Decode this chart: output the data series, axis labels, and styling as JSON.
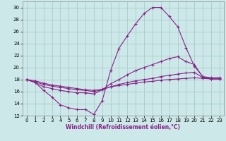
{
  "xlabel": "Windchill (Refroidissement éolien,°C)",
  "bg_color": "#cce8e8",
  "grid_color": "#aacccc",
  "line_color": "#882288",
  "xlim": [
    -0.5,
    23.5
  ],
  "ylim": [
    12,
    31
  ],
  "xticks": [
    0,
    1,
    2,
    3,
    4,
    5,
    6,
    7,
    8,
    9,
    10,
    11,
    12,
    13,
    14,
    15,
    16,
    17,
    18,
    19,
    20,
    21,
    22,
    23
  ],
  "yticks": [
    12,
    14,
    16,
    18,
    20,
    22,
    24,
    26,
    28,
    30
  ],
  "series": [
    {
      "x": [
        0,
        1,
        2,
        3,
        4,
        5,
        6,
        7,
        8,
        9,
        10,
        11,
        12,
        13,
        14,
        15,
        16,
        17,
        18,
        19,
        20,
        21,
        22,
        23
      ],
      "y": [
        18,
        17.5,
        16.2,
        15.1,
        13.8,
        13.3,
        13.0,
        13.0,
        12.2,
        14.5,
        19.5,
        23.2,
        25.3,
        27.3,
        29.0,
        30.0,
        30.0,
        28.5,
        26.8,
        23.3,
        20.2,
        18.5,
        18.3,
        18.3
      ]
    },
    {
      "x": [
        0,
        1,
        2,
        3,
        4,
        5,
        6,
        7,
        8,
        9,
        10,
        11,
        12,
        13,
        14,
        15,
        16,
        17,
        18,
        19,
        20,
        21,
        22,
        23
      ],
      "y": [
        18,
        17.5,
        16.8,
        16.5,
        16.2,
        16.0,
        15.8,
        15.8,
        15.6,
        16.3,
        17.3,
        18.0,
        18.8,
        19.5,
        20.0,
        20.5,
        21.0,
        21.5,
        21.8,
        21.0,
        20.5,
        18.4,
        18.2,
        18.2
      ]
    },
    {
      "x": [
        0,
        1,
        2,
        3,
        4,
        5,
        6,
        7,
        8,
        9,
        10,
        11,
        12,
        13,
        14,
        15,
        16,
        17,
        18,
        19,
        20,
        21,
        22,
        23
      ],
      "y": [
        18,
        17.6,
        17.2,
        16.9,
        16.7,
        16.5,
        16.3,
        16.2,
        16.0,
        16.3,
        16.8,
        17.2,
        17.5,
        17.8,
        18.0,
        18.2,
        18.5,
        18.7,
        18.9,
        19.1,
        19.2,
        18.3,
        18.1,
        18.1
      ]
    },
    {
      "x": [
        0,
        1,
        2,
        3,
        4,
        5,
        6,
        7,
        8,
        9,
        10,
        11,
        12,
        13,
        14,
        15,
        16,
        17,
        18,
        19,
        20,
        21,
        22,
        23
      ],
      "y": [
        18,
        17.8,
        17.4,
        17.1,
        16.9,
        16.7,
        16.5,
        16.3,
        16.2,
        16.4,
        16.8,
        17.0,
        17.2,
        17.4,
        17.6,
        17.7,
        17.9,
        18.0,
        18.1,
        18.2,
        18.3,
        18.2,
        18.1,
        18.1
      ]
    }
  ]
}
